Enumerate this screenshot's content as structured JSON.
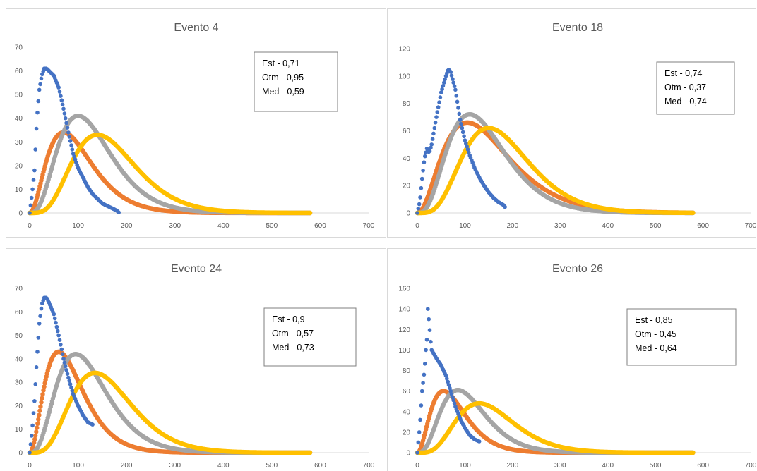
{
  "colors": {
    "observed": "#4472C4",
    "est": "#ED7D31",
    "otm": "#A5A5A5",
    "med": "#FFC000",
    "axis": "#d9d9d9",
    "text": "#595959"
  },
  "chart_data": [
    {
      "type": "scatter",
      "title": "Evento 4",
      "xlim": [
        0,
        700
      ],
      "ylim": [
        0,
        70
      ],
      "x_ticks": [
        "0",
        "100",
        "200",
        "300",
        "400",
        "500",
        "600",
        "700"
      ],
      "y_ticks": [
        "0",
        "10",
        "20",
        "30",
        "40",
        "50",
        "60",
        "70"
      ],
      "annotation": [
        "Est - 0,71",
        "Otm - 0,95",
        "Med - 0,59"
      ],
      "observed": {
        "x": [
          0,
          5,
          10,
          15,
          20,
          25,
          30,
          35,
          40,
          50,
          60,
          70,
          80,
          90,
          100,
          110,
          120,
          130,
          140,
          150,
          160,
          170,
          180,
          185
        ],
        "y": [
          0,
          8,
          18,
          40,
          52,
          58,
          61,
          61,
          60,
          58,
          53,
          44,
          34,
          25,
          19,
          15,
          11,
          8,
          6,
          4,
          3,
          2,
          1,
          0
        ]
      },
      "series": [
        {
          "peak_x": 70,
          "peak_y": 34,
          "x_end": 580
        },
        {
          "peak_x": 100,
          "peak_y": 41,
          "x_end": 580
        },
        {
          "peak_x": 140,
          "peak_y": 33,
          "x_end": 580
        }
      ]
    },
    {
      "type": "scatter",
      "title": "Evento 18",
      "xlim": [
        0,
        700
      ],
      "ylim": [
        0,
        120
      ],
      "x_ticks": [
        "0",
        "100",
        "200",
        "300",
        "400",
        "500",
        "600",
        "700"
      ],
      "y_ticks": [
        "0",
        "20",
        "40",
        "60",
        "80",
        "100",
        "120"
      ],
      "annotation": [
        "Est - 0,74",
        "Otm - 0,37",
        "Med - 0,74"
      ],
      "observed": {
        "x": [
          0,
          5,
          10,
          15,
          20,
          25,
          30,
          40,
          50,
          60,
          65,
          70,
          80,
          90,
          100,
          110,
          120,
          130,
          140,
          150,
          160,
          170,
          180,
          185
        ],
        "y": [
          0,
          8,
          25,
          40,
          47,
          44,
          50,
          70,
          88,
          100,
          105,
          103,
          90,
          68,
          53,
          42,
          33,
          26,
          20,
          15,
          11,
          8,
          6,
          4
        ]
      },
      "series": [
        {
          "peak_x": 105,
          "peak_y": 66,
          "x_end": 580
        },
        {
          "peak_x": 110,
          "peak_y": 72,
          "x_end": 580
        },
        {
          "peak_x": 150,
          "peak_y": 62,
          "x_end": 580
        }
      ]
    },
    {
      "type": "scatter",
      "title": "Evento 24",
      "xlim": [
        0,
        700
      ],
      "ylim": [
        0,
        70
      ],
      "x_ticks": [
        "0",
        "100",
        "200",
        "300",
        "400",
        "500",
        "600",
        "700"
      ],
      "y_ticks": [
        "0",
        "10",
        "20",
        "30",
        "40",
        "50",
        "60",
        "70"
      ],
      "annotation": [
        "Est - 0,9",
        "Otm - 0,57",
        "Med - 0,73"
      ],
      "observed": {
        "x": [
          0,
          5,
          10,
          15,
          20,
          25,
          30,
          35,
          40,
          50,
          60,
          70,
          80,
          90,
          100,
          110,
          120,
          130
        ],
        "y": [
          0,
          9,
          22,
          40,
          55,
          63,
          66,
          66,
          64,
          59,
          50,
          40,
          32,
          25,
          20,
          16,
          13,
          12
        ]
      },
      "series": [
        {
          "peak_x": 60,
          "peak_y": 43,
          "x_end": 580
        },
        {
          "peak_x": 95,
          "peak_y": 42,
          "x_end": 580
        },
        {
          "peak_x": 135,
          "peak_y": 34,
          "x_end": 580
        }
      ]
    },
    {
      "type": "scatter",
      "title": "Evento 26",
      "xlim": [
        0,
        700
      ],
      "ylim": [
        0,
        160
      ],
      "x_ticks": [
        "0",
        "100",
        "200",
        "300",
        "400",
        "500",
        "600",
        "700"
      ],
      "y_ticks": [
        "0",
        "20",
        "40",
        "60",
        "80",
        "100",
        "120",
        "140",
        "160"
      ],
      "annotation": [
        "Est - 0,85",
        "Otm - 0,45",
        "Med - 0,64"
      ],
      "observed": {
        "x": [
          0,
          5,
          10,
          15,
          18,
          20,
          22,
          25,
          28,
          30,
          35,
          40,
          50,
          60,
          70,
          80,
          90,
          100,
          110,
          120,
          130
        ],
        "y": [
          0,
          25,
          60,
          80,
          100,
          110,
          140,
          125,
          108,
          100,
          96,
          92,
          85,
          75,
          60,
          45,
          33,
          24,
          17,
          13,
          11
        ]
      },
      "series": [
        {
          "peak_x": 55,
          "peak_y": 60,
          "x_end": 580
        },
        {
          "peak_x": 85,
          "peak_y": 61,
          "x_end": 580
        },
        {
          "peak_x": 130,
          "peak_y": 48,
          "x_end": 580
        }
      ]
    }
  ]
}
